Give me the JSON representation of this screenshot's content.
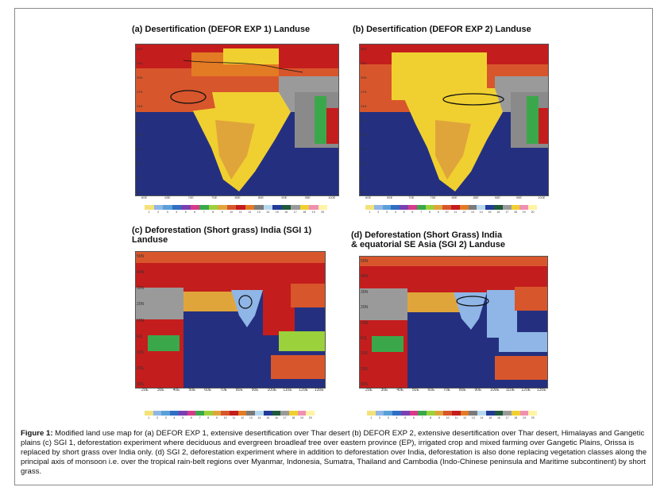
{
  "panels": [
    {
      "id": "a",
      "title": "(a) Desertification (DEFOR EXP 1) Landuse",
      "yticks": [
        "36N",
        "33N",
        "30N",
        "27N",
        "24N",
        "21N",
        "18N",
        "15N",
        "12N",
        "9N",
        "6N"
      ],
      "xticks": [
        "60E",
        "65E",
        "70E",
        "75E",
        "80E",
        "85E",
        "90E",
        "95E",
        "100E"
      ]
    },
    {
      "id": "b",
      "title": "(b) Desertification  (DEFOR EXP 2) Landuse",
      "yticks": [
        "36N",
        "33N",
        "30N",
        "27N",
        "24N",
        "21N",
        "18N",
        "15N",
        "12N",
        "9N",
        "6N"
      ],
      "xticks": [
        "60E",
        "65E",
        "70E",
        "75E",
        "80E",
        "85E",
        "90E",
        "95E",
        "100E"
      ]
    },
    {
      "id": "c",
      "title_line1": "(c) Deforestation (Short grass) India (SGI 1)",
      "title_line2": "Landuse",
      "yticks": [
        "50N",
        "40N",
        "30N",
        "20N",
        "10N",
        "EQ",
        "10S",
        "20S",
        "30S"
      ],
      "xticks": [
        "20E",
        "30E",
        "40E",
        "50E",
        "60E",
        "70E",
        "80E",
        "90E",
        "100E",
        "110E",
        "120E",
        "130E"
      ]
    },
    {
      "id": "d",
      "title_line1": "(d) Deforestation (Short Grass)  India",
      "title_line2": "& equatorial SE Asia (SGI 2) Landuse",
      "yticks": [
        "50N",
        "40N",
        "30N",
        "20N",
        "10N",
        "EQ",
        "10S",
        "20S",
        "30S"
      ],
      "xticks": [
        "20E",
        "30E",
        "40E",
        "50E",
        "60E",
        "70E",
        "80E",
        "90E",
        "100E",
        "110E",
        "120E",
        "130E"
      ]
    }
  ],
  "legend": {
    "numbers": [
      "1",
      "2",
      "3",
      "4",
      "5",
      "6",
      "7",
      "8",
      "9",
      "10",
      "11",
      "12",
      "13",
      "14",
      "15",
      "16",
      "17",
      "18",
      "19",
      "20"
    ],
    "colors": [
      "#f3e27a",
      "#8fb6e6",
      "#5aa0d8",
      "#2f6fc4",
      "#7a3fb0",
      "#d73a8a",
      "#3aa84a",
      "#9bd13b",
      "#e0a53a",
      "#d8562c",
      "#c41d1d",
      "#e37a24",
      "#7a7a7a",
      "#b7d9f0",
      "#223b96",
      "#1f5a3a",
      "#9a9a9a",
      "#f0d030",
      "#f090b0",
      "#fff3a6"
    ]
  },
  "caption": {
    "label": "Figure 1:",
    "text": " Modified land use map for (a) DEFOR EXP 1, extensive desertification over Thar desert (b) DEFOR EXP 2, extensive desertification over Thar desert, Himalayas and Gangetic plains (c) SGI 1, deforestation experiment where deciduous and evergreen broadleaf tree over eastern province (EP), irrigated crop and mixed farming over Gangetic Plains, Orissa is replaced by short grass over India only. (d) SGI 2, deforestation experiment where in addition to deforestation over India, deforestation is also done replacing vegetation classes along the principal axis of monsoon i.e. over the tropical rain-belt regions over Myanmar, Indonesia, Sumatra, Thailand and Cambodia (Indo-Chinese peninsula and Maritime subcontinent) by short grass."
  }
}
